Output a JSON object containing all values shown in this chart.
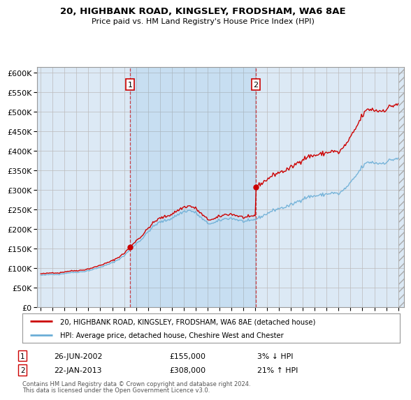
{
  "title1": "20, HIGHBANK ROAD, KINGSLEY, FRODSHAM, WA6 8AE",
  "title2": "Price paid vs. HM Land Registry's House Price Index (HPI)",
  "yticks": [
    0,
    50000,
    100000,
    150000,
    200000,
    250000,
    300000,
    350000,
    400000,
    450000,
    500000,
    550000,
    600000
  ],
  "ylim": [
    0,
    615000
  ],
  "legend_line1": "20, HIGHBANK ROAD, KINGSLEY, FRODSHAM, WA6 8AE (detached house)",
  "legend_line2": "HPI: Average price, detached house, Cheshire West and Chester",
  "annotation1_date": "26-JUN-2002",
  "annotation1_price": "£155,000",
  "annotation1_hpi": "3% ↓ HPI",
  "annotation2_date": "22-JAN-2013",
  "annotation2_price": "£308,000",
  "annotation2_hpi": "21% ↑ HPI",
  "footnote1": "Contains HM Land Registry data © Crown copyright and database right 2024.",
  "footnote2": "This data is licensed under the Open Government Licence v3.0.",
  "hpi_color": "#6baed6",
  "price_color": "#cc0000",
  "sale1_x": 2002.49,
  "sale1_y": 155000,
  "sale2_x": 2013.06,
  "sale2_y": 308000,
  "xlim_left": 1994.7,
  "xlim_right": 2025.5
}
